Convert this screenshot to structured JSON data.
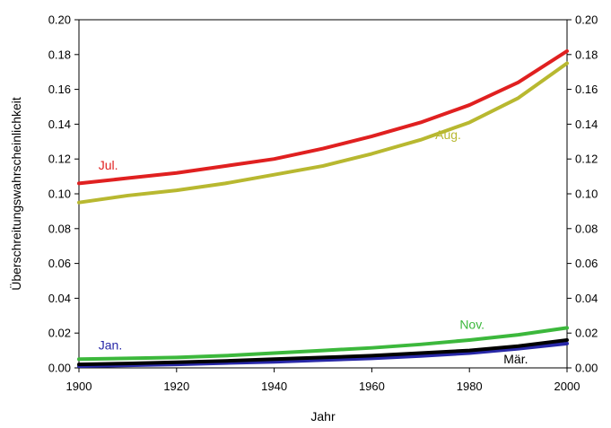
{
  "chart_data": {
    "type": "line",
    "title": "",
    "xlabel": "Jahr",
    "ylabel": "Überschreitungswahrscheinlichkeit",
    "xlim": [
      1900,
      2000
    ],
    "ylim": [
      0,
      0.2
    ],
    "x_ticks": [
      "1900",
      "1920",
      "1940",
      "1960",
      "1980",
      "2000"
    ],
    "y_ticks": [
      "0.00",
      "0.02",
      "0.04",
      "0.06",
      "0.08",
      "0.10",
      "0.12",
      "0.14",
      "0.16",
      "0.18",
      "0.20"
    ],
    "grid": false,
    "legend": "none",
    "x": [
      1900,
      1910,
      1920,
      1930,
      1940,
      1950,
      1960,
      1970,
      1980,
      1990,
      2000
    ],
    "series": [
      {
        "name": "Jul.",
        "color": "#e02020",
        "values": [
          0.106,
          0.109,
          0.112,
          0.116,
          0.12,
          0.126,
          0.133,
          0.141,
          0.151,
          0.164,
          0.182
        ]
      },
      {
        "name": "Aug.",
        "color": "#b8b830",
        "values": [
          0.095,
          0.099,
          0.102,
          0.106,
          0.111,
          0.116,
          0.123,
          0.131,
          0.141,
          0.155,
          0.175
        ]
      },
      {
        "name": "Nov.",
        "color": "#3cb83c",
        "values": [
          0.005,
          0.0055,
          0.006,
          0.007,
          0.0085,
          0.01,
          0.0115,
          0.0135,
          0.016,
          0.019,
          0.023
        ]
      },
      {
        "name": "Jan.",
        "color": "#2828a8",
        "values": [
          0.001,
          0.0015,
          0.002,
          0.0028,
          0.0035,
          0.0045,
          0.0055,
          0.0068,
          0.0085,
          0.011,
          0.014
        ]
      },
      {
        "name": "Mär.",
        "color": "#000000",
        "values": [
          0.002,
          0.0025,
          0.0032,
          0.004,
          0.005,
          0.006,
          0.007,
          0.0085,
          0.01,
          0.0125,
          0.016
        ]
      }
    ],
    "annotations": [
      {
        "text": "Jul.",
        "x": 1904,
        "y": 0.114,
        "color": "#e02020"
      },
      {
        "text": "Aug.",
        "x": 1973,
        "y": 0.1315,
        "color": "#b8b830"
      },
      {
        "text": "Nov.",
        "x": 1978,
        "y": 0.0225,
        "color": "#3cb83c"
      },
      {
        "text": "Jan.",
        "x": 1904,
        "y": 0.0105,
        "color": "#2828a8"
      },
      {
        "text": "Mär.",
        "x": 1987,
        "y": 0.0025,
        "color": "#000000"
      }
    ]
  }
}
